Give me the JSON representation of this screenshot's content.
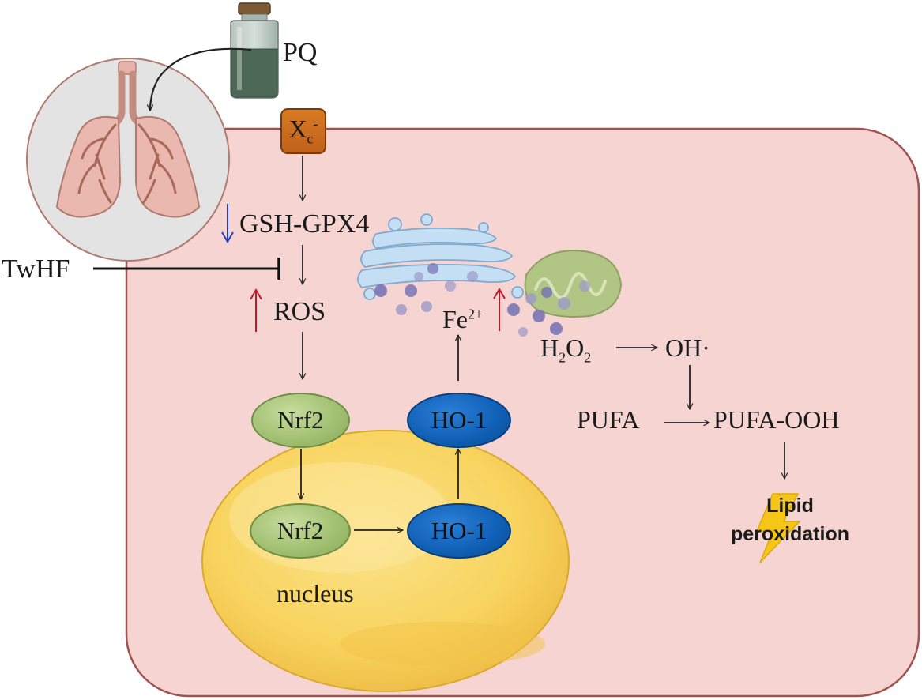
{
  "labels": {
    "pq": "PQ",
    "xc_base": "X",
    "xc_sub": "c",
    "xc_sup": "-",
    "gsh_gpx4": "GSH-GPX4",
    "twhf": "TwHF",
    "ros": "ROS",
    "fe_base": "Fe",
    "fe_sup": "2+",
    "h2o2_h": "H",
    "h2o2_2a": "2",
    "h2o2_o": "O",
    "h2o2_2b": "2",
    "oh": "OH·",
    "pufa": "PUFA",
    "pufa_ooh": "PUFA-OOH",
    "lipid_line1": "Lipid",
    "lipid_line2": "peroxidation",
    "nrf2_cytoplasm": "Nrf2",
    "ho1_cytoplasm": "HO-1",
    "nrf2_nucleus": "Nrf2",
    "ho1_nucleus": "HO-1",
    "nucleus": "nucleus"
  },
  "indicators": {
    "gsh_gpx4": "down",
    "ros": "up",
    "fe2": "up"
  },
  "colors": {
    "cell_fill": "#f5d4d1",
    "cell_border": "#a0524e",
    "nucleus_fill": "#f9d766",
    "nucleus_border": "#d9a92c",
    "nrf2_fill": "#a9c57a",
    "ho1_fill": "#0f5fb5",
    "xc_fill": "#c96a1e",
    "up_arrow": "#c0182a",
    "down_arrow": "#1f3fbf",
    "lung_circle": "#e3e3e3",
    "lung_fill": "#e7b2a9",
    "golgi": "#c4dff3",
    "mito": "#b1c585",
    "iron_dot": "#7a74b5",
    "lightning": "#f5c518"
  },
  "icons": [
    "pq-vial-icon",
    "lungs-icon",
    "golgi-icon",
    "mitochondrion-icon",
    "iron-particles-icon",
    "lightning-icon"
  ]
}
